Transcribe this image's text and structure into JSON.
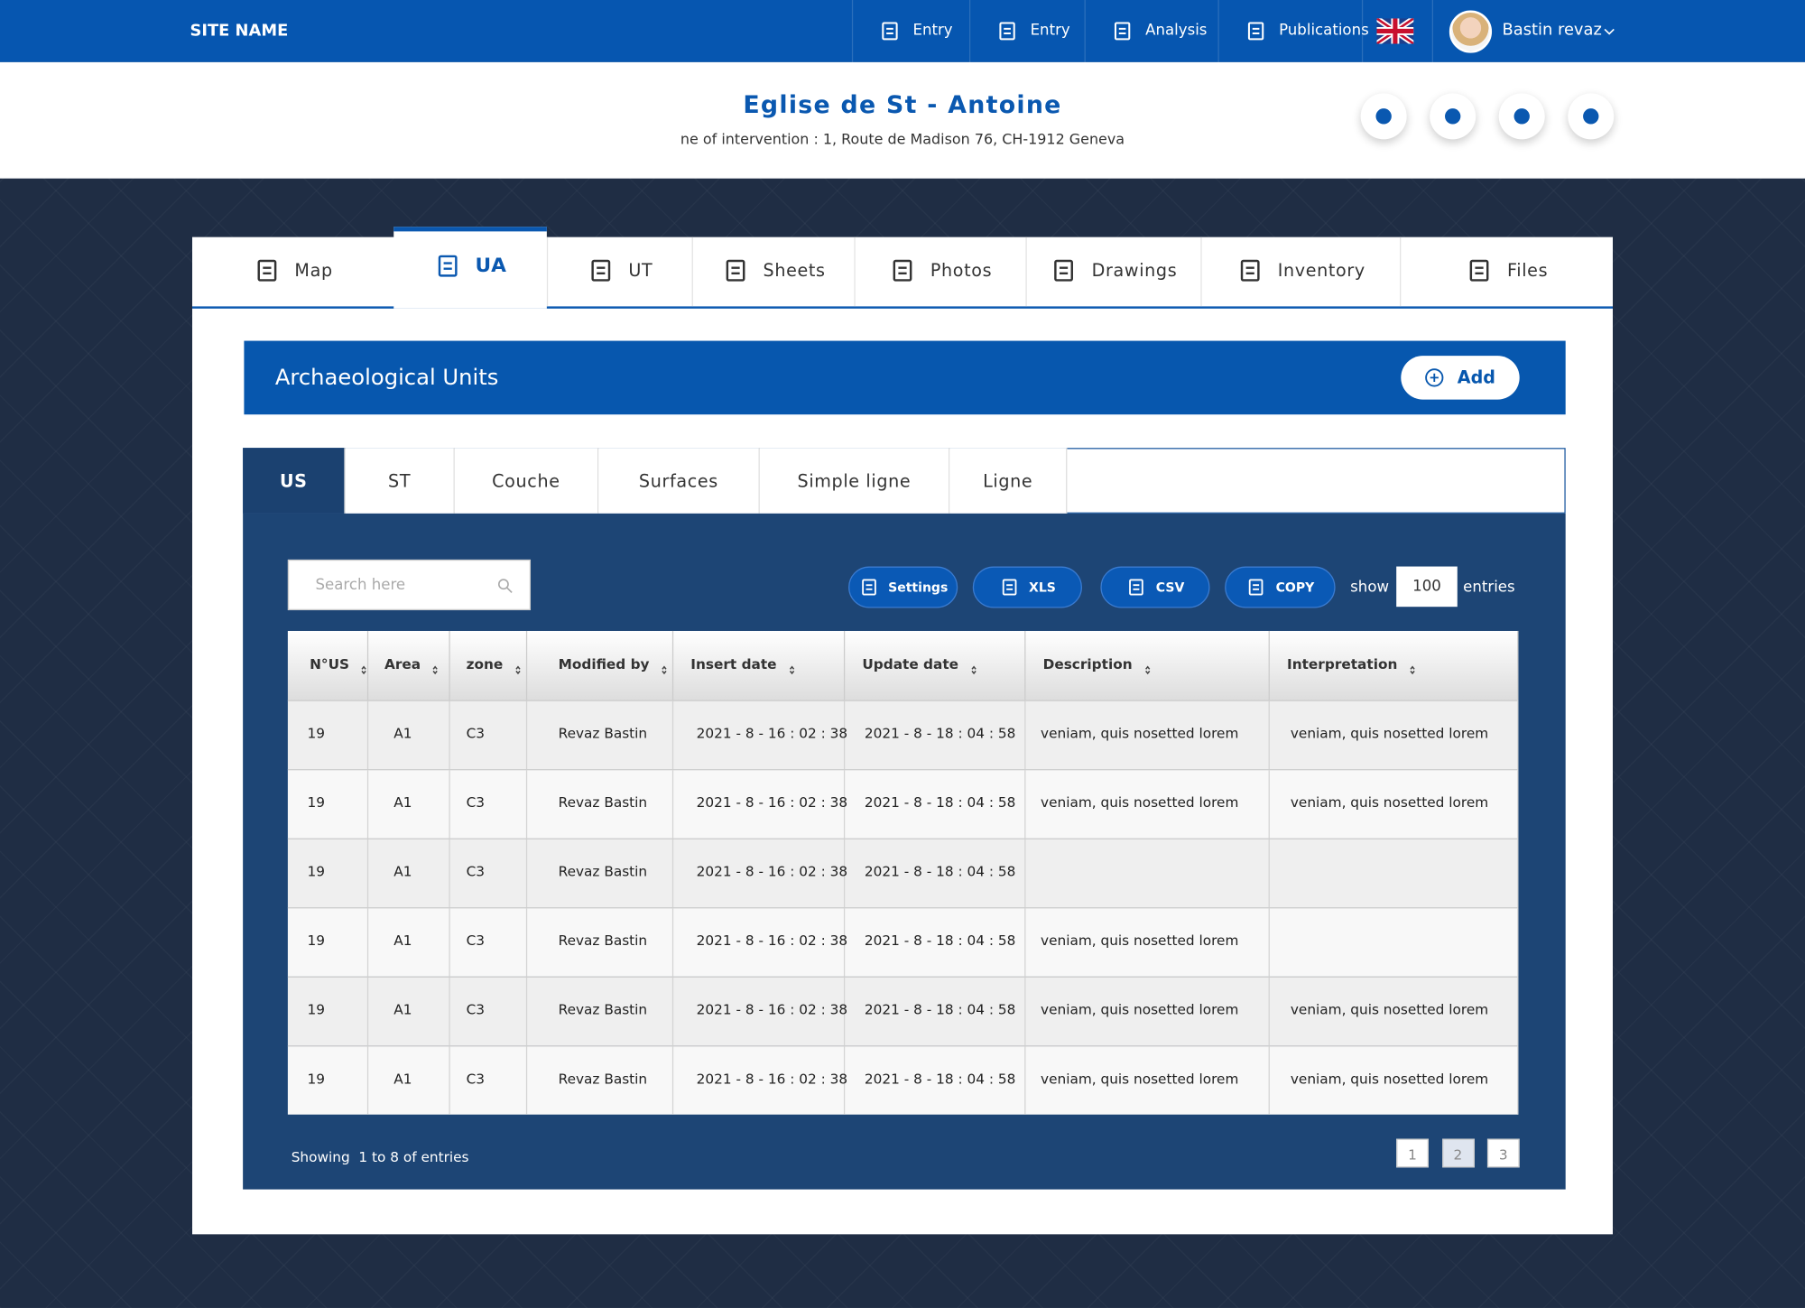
{
  "header": {
    "site_name": "SITE NAME",
    "nav": [
      "Entry",
      "Entry",
      "Analysis",
      "Publications"
    ],
    "user": "Bastin revaz"
  },
  "project": {
    "title": "Eglise de St - Antoine",
    "address": "ne of intervention : 1, Route de Madison 76, CH-1912 Geneva"
  },
  "tabs": [
    "Map",
    "UA",
    "UT",
    "Sheets",
    "Photos",
    "Drawings",
    "Inventory",
    "Files"
  ],
  "section": {
    "title": "Archaeological Units",
    "add": "Add"
  },
  "subtabs": [
    "US",
    "ST",
    "Couche",
    "Surfaces",
    "Simple ligne",
    "Ligne"
  ],
  "toolbar": {
    "search": "Search here",
    "buttons": [
      "Settings",
      "XLS",
      "CSV",
      "COPY"
    ],
    "show": "show",
    "entries_value": "100",
    "entries": "entries"
  },
  "table": {
    "columns": [
      "N°US",
      "Area",
      "zone",
      "Modified by",
      "Insert date",
      "Update date",
      "Description",
      "Interpretation"
    ],
    "rows": [
      [
        "19",
        "A1",
        "C3",
        "Revaz Bastin",
        "2021 - 8 - 16 : 02 : 38",
        "2021 - 8 - 18 : 04 : 58",
        "veniam, quis nosetted lorem",
        "veniam, quis nosetted lorem"
      ],
      [
        "19",
        "A1",
        "C3",
        "Revaz Bastin",
        "2021 - 8 - 16 : 02 : 38",
        "2021 - 8 - 18 : 04 : 58",
        "veniam, quis nosetted lorem",
        "veniam, quis nosetted lorem"
      ],
      [
        "19",
        "A1",
        "C3",
        "Revaz Bastin",
        "2021 - 8 - 16 : 02 : 38",
        "2021 - 8 - 18 : 04 : 58",
        null,
        null
      ],
      [
        "19",
        "A1",
        "C3",
        "Revaz Bastin",
        "2021 - 8 - 16 : 02 : 38",
        "2021 - 8 - 18 : 04 : 58",
        "veniam, quis nosetted lorem",
        null
      ],
      [
        "19",
        "A1",
        "C3",
        "Revaz Bastin",
        "2021 - 8 - 16 : 02 : 38",
        "2021 - 8 - 18 : 04 : 58",
        "veniam, quis nosetted lorem",
        "veniam, quis nosetted lorem"
      ],
      [
        "19",
        "A1",
        "C3",
        "Revaz Bastin",
        "2021 - 8 - 16 : 02 : 38",
        "2021 - 8 - 18 : 04 : 58",
        "veniam, quis nosetted lorem",
        "veniam, quis nosetted lorem"
      ]
    ]
  },
  "footer": {
    "showing": "Showing  1 to 8 of entries",
    "pages": [
      "1",
      "2",
      "3"
    ]
  }
}
